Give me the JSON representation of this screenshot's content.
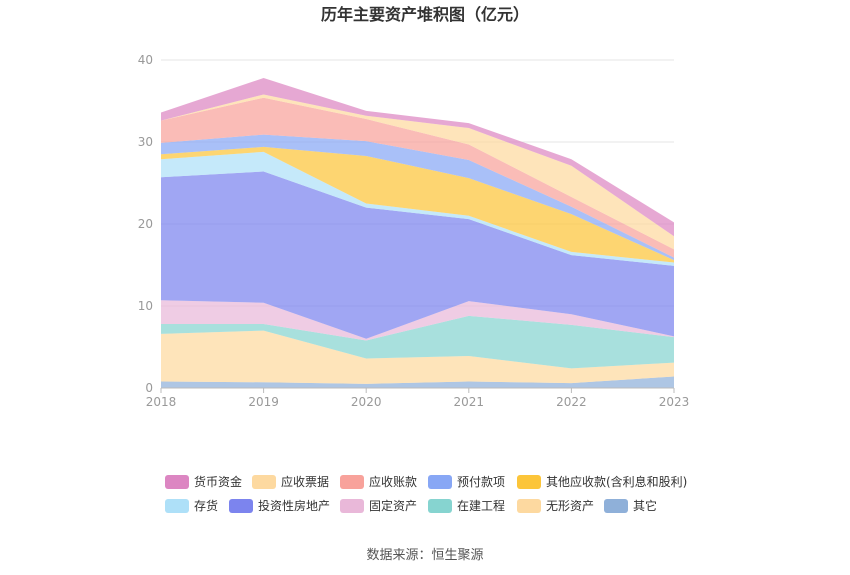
{
  "chart_data": {
    "type": "area",
    "stacked": true,
    "title": "历年主要资产堆积图（亿元）",
    "source": "数据来源：恒生聚源",
    "categories": [
      "2018",
      "2019",
      "2020",
      "2021",
      "2022",
      "2023"
    ],
    "ylim": [
      0,
      40
    ],
    "yticks": [
      "0",
      "10",
      "20",
      "30",
      "40"
    ],
    "grid": true,
    "legend_position": "bottom",
    "series": [
      {
        "name": "其它",
        "color": "#8fb0d9",
        "values": [
          0.8,
          0.7,
          0.5,
          0.8,
          0.6,
          1.4
        ]
      },
      {
        "name": "无形资产",
        "color": "#fdd9a0",
        "values": [
          5.8,
          6.3,
          3.1,
          3.1,
          1.8,
          1.7
        ]
      },
      {
        "name": "在建工程",
        "color": "#86d4d0",
        "values": [
          1.2,
          0.8,
          2.2,
          4.9,
          5.3,
          3.1
        ]
      },
      {
        "name": "固定资产",
        "color": "#e9b8d9",
        "values": [
          2.9,
          2.6,
          0.2,
          1.8,
          1.3,
          0.1
        ]
      },
      {
        "name": "投资性房地产",
        "color": "#7c84ee",
        "values": [
          15.0,
          16.0,
          16.0,
          10.0,
          7.2,
          8.6
        ]
      },
      {
        "name": "存货",
        "color": "#aee0f8",
        "values": [
          2.2,
          2.4,
          0.5,
          0.4,
          0.4,
          0.4
        ]
      },
      {
        "name": "其他应收款(含利息和股利)",
        "color": "#fcc53a",
        "values": [
          0.6,
          0.6,
          5.8,
          4.6,
          4.6,
          0.3
        ]
      },
      {
        "name": "预付款项",
        "color": "#88a7f5",
        "values": [
          1.4,
          1.5,
          1.8,
          2.2,
          0.9,
          0.3
        ]
      },
      {
        "name": "应收账款",
        "color": "#f8a29b",
        "values": [
          2.7,
          4.5,
          2.7,
          1.9,
          1.2,
          1.0
        ]
      },
      {
        "name": "应收票据",
        "color": "#fdd9a0",
        "values": [
          0.0,
          0.4,
          0.4,
          2.0,
          3.8,
          1.6
        ]
      },
      {
        "name": "货币资金",
        "color": "#dc86c2",
        "values": [
          1.0,
          2.0,
          0.6,
          0.6,
          0.8,
          1.7
        ]
      }
    ],
    "legend_order": [
      "货币资金",
      "应收票据",
      "应收账款",
      "预付款项",
      "其他应收款(含利息和股利)",
      "存货",
      "投资性房地产",
      "固定资产",
      "在建工程",
      "无形资产",
      "其它"
    ]
  }
}
